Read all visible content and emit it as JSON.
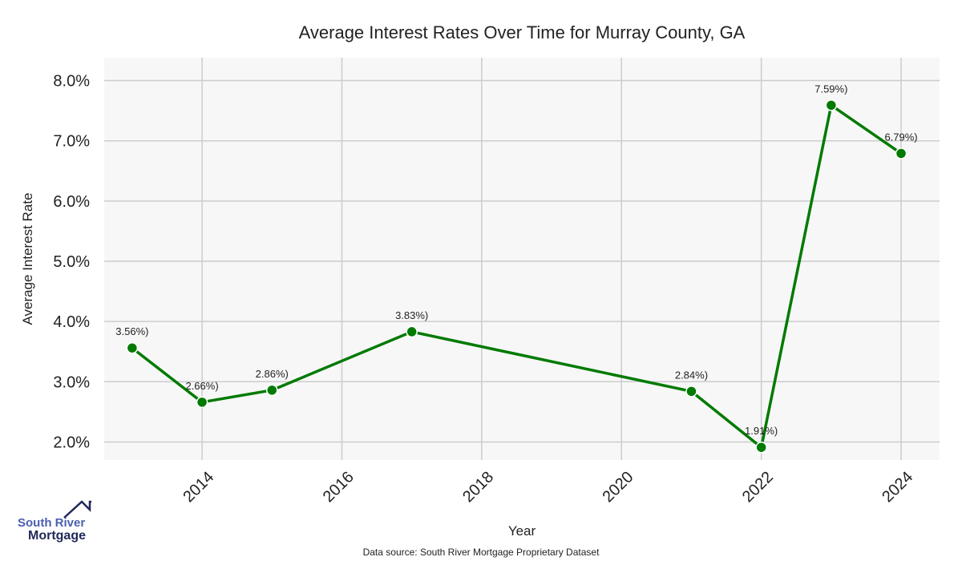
{
  "chart_data": {
    "type": "line",
    "title": "Average Interest Rates Over Time for Murray County, GA",
    "xlabel": "Year",
    "ylabel": "Average Interest Rate",
    "x": [
      2013,
      2014,
      2015,
      2017,
      2021,
      2022,
      2023,
      2024
    ],
    "values": [
      3.56,
      2.66,
      2.86,
      3.83,
      2.84,
      1.91,
      7.59,
      6.79
    ],
    "data_labels": [
      "3.56%)",
      "2.66%)",
      "2.86%)",
      "3.83%)",
      "2.84%)",
      "1.91%)",
      "7.59%)",
      "6.79%)"
    ],
    "xticks": [
      2014,
      2016,
      2018,
      2020,
      2022,
      2024
    ],
    "yticks": [
      2,
      3,
      4,
      5,
      6,
      7,
      8
    ],
    "ytick_labels": [
      "2.0%",
      "3.0%",
      "4.0%",
      "5.0%",
      "6.0%",
      "7.0%",
      "8.0%"
    ],
    "xlim": [
      2012.6,
      2024.55
    ],
    "ylim": [
      1.7,
      8.38
    ],
    "grid": true,
    "line_color": "#007a00"
  },
  "source": "Data source: South River Mortgage Proprietary Dataset",
  "logo": {
    "line1": "South River",
    "line2": "Mortgage"
  }
}
